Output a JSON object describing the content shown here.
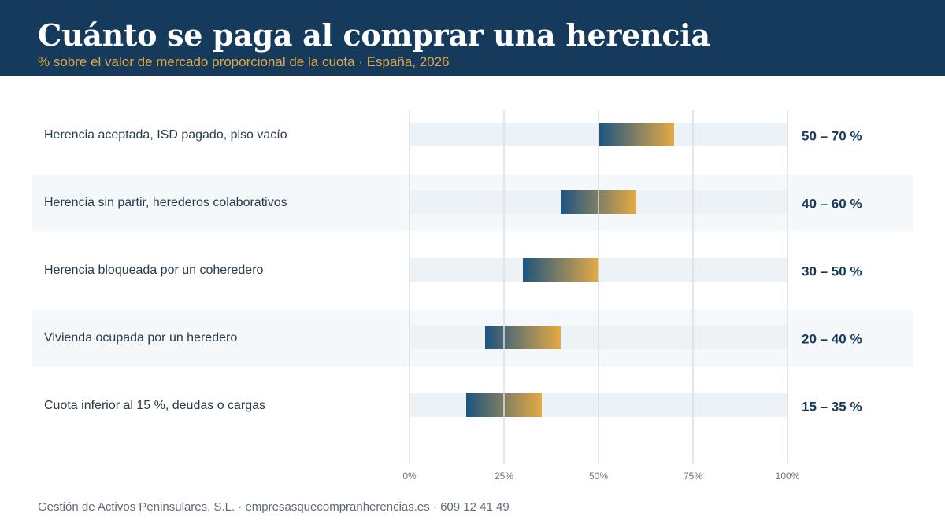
{
  "header": {
    "title": "Cuánto se paga al comprar una herencia",
    "subtitle": "% sobre el valor de mercado proporcional de la cuota · España, 2026"
  },
  "chart_data": {
    "type": "bar",
    "orientation": "horizontal",
    "subtype": "range",
    "categories": [
      "Herencia aceptada, ISD pagado, piso vacío",
      "Herencia sin partir, herederos colaborativos",
      "Herencia bloqueada por un coheredero",
      "Vivienda ocupada por un heredero",
      "Cuota inferior al 15 %, deudas o cargas"
    ],
    "ranges": [
      [
        50,
        70
      ],
      [
        40,
        60
      ],
      [
        30,
        50
      ],
      [
        20,
        40
      ],
      [
        15,
        35
      ]
    ],
    "range_labels": [
      "50 – 70 %",
      "40 – 60 %",
      "30 – 50 %",
      "20 – 40 %",
      "15 – 35 %"
    ],
    "xlim": [
      0,
      100
    ],
    "xticks": [
      0,
      25,
      50,
      75,
      100
    ],
    "xtick_labels": [
      "0%",
      "25%",
      "50%",
      "75%",
      "100%"
    ],
    "grid": true,
    "colors": {
      "bar_start": "#1d5480",
      "bar_end": "#e4aa45",
      "track": "#edf2f7",
      "row_alt": "#f5f8fb",
      "grid": "#dcdfe3",
      "label": "#2a3b4c",
      "value": "#163a5c",
      "tick": "#6b7785"
    }
  },
  "footer": {
    "text": "Gestión de Activos Peninsulares, S.L. · empresasquecompranherencias.es · 609 12 41 49"
  }
}
